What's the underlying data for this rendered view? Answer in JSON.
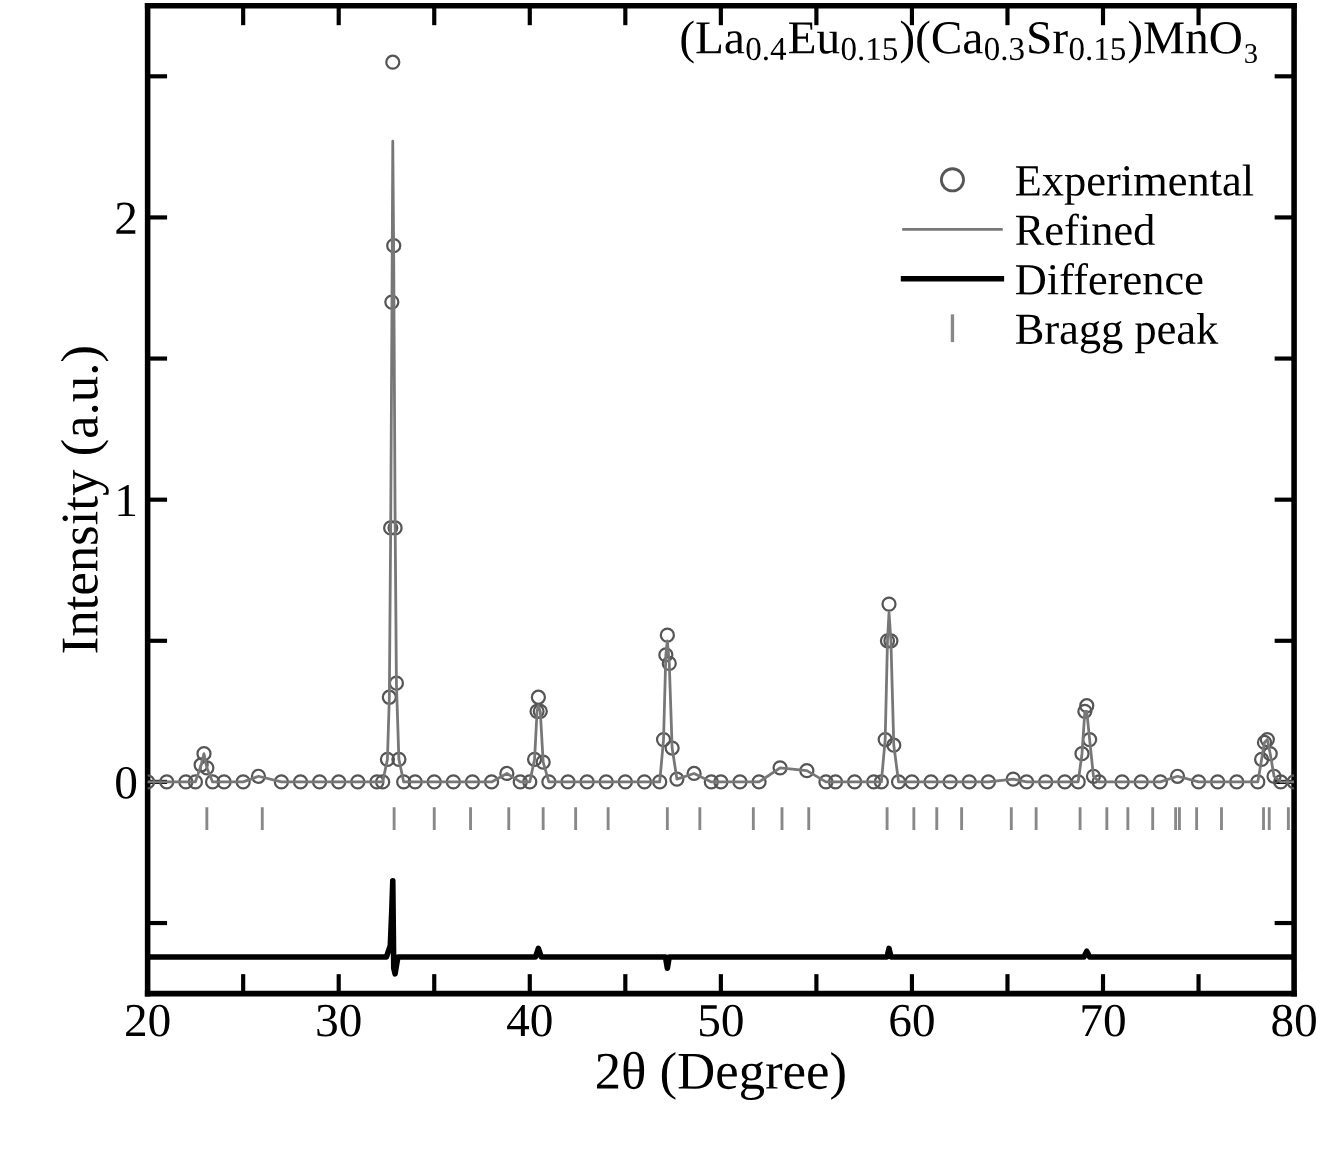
{
  "chart_data": {
    "type": "line",
    "title": "(La$_{0.4}$Eu$_{0.15}$)(Ca$_{0.3}$Sr$_{0.15}$)MnO₃",
    "xlabel": "2θ (Degree)",
    "ylabel": "Intensity (a.u.)",
    "xlim": [
      20,
      80
    ],
    "ylim": [
      -0.75,
      2.75
    ],
    "xticks": [
      20,
      {
        "value": 25,
        "label": null
      },
      30,
      {
        "value": 35,
        "label": null
      },
      40,
      {
        "value": 45,
        "label": null
      },
      50,
      {
        "value": 55,
        "label": null
      },
      60,
      {
        "value": 65,
        "label": null
      },
      70,
      {
        "value": 75,
        "label": null
      },
      80
    ],
    "yticks": [
      {
        "value": -0.5,
        "label": null
      },
      0,
      {
        "value": 0.5,
        "label": null
      },
      1,
      {
        "value": 1.5,
        "label": null
      },
      2,
      {
        "value": 2.5,
        "label": null
      }
    ],
    "grid": false,
    "legend": "top right",
    "series": [
      {
        "name": "Experimental",
        "type": "scatter",
        "marker": "circle",
        "color": "#555555",
        "x": [
          20,
          21,
          22,
          22.5,
          22.8,
          22.95,
          23.1,
          23.4,
          24,
          25,
          25.8,
          27,
          28,
          29,
          30,
          31,
          32,
          32.3,
          32.55,
          32.65,
          32.72,
          32.78,
          32.83,
          32.88,
          32.95,
          33.02,
          33.15,
          33.4,
          34,
          35,
          36,
          37,
          38,
          38.8,
          39.5,
          40,
          40.25,
          40.38,
          40.45,
          40.55,
          40.7,
          41,
          42,
          43,
          44,
          45,
          46,
          46.8,
          47,
          47.12,
          47.2,
          47.3,
          47.45,
          47.7,
          48.6,
          49.5,
          50,
          51,
          52,
          53.1,
          54.5,
          55.5,
          56,
          57,
          58,
          58.4,
          58.6,
          58.72,
          58.8,
          58.9,
          59.05,
          59.3,
          60,
          61,
          62,
          63,
          64,
          65.3,
          66,
          67,
          68,
          68.7,
          68.9,
          69.05,
          69.15,
          69.3,
          69.5,
          69.8,
          71,
          72,
          73,
          73.9,
          75,
          76,
          77,
          78.1,
          78.3,
          78.45,
          78.6,
          78.75,
          78.95,
          79.3,
          80
        ],
        "values": [
          0,
          0,
          0,
          0,
          0.06,
          0.1,
          0.05,
          0,
          0,
          0,
          0.02,
          0,
          0,
          0,
          0,
          0,
          0,
          0,
          0.08,
          0.3,
          0.9,
          1.7,
          2.55,
          1.9,
          0.9,
          0.35,
          0.08,
          0,
          0,
          0,
          0,
          0,
          0,
          0.03,
          0,
          0,
          0.08,
          0.25,
          0.3,
          0.25,
          0.07,
          0,
          0,
          0,
          0,
          0,
          0,
          0,
          0.15,
          0.45,
          0.52,
          0.42,
          0.12,
          0.01,
          0.03,
          0,
          0,
          0,
          0,
          0.05,
          0.04,
          0,
          0,
          0,
          0,
          0,
          0.15,
          0.5,
          0.63,
          0.5,
          0.13,
          0,
          0,
          0,
          0,
          0,
          0,
          0.01,
          0,
          0,
          0,
          0,
          0.1,
          0.25,
          0.27,
          0.15,
          0.02,
          0,
          0,
          0,
          0,
          0.02,
          0,
          0,
          0,
          0,
          0.08,
          0.14,
          0.15,
          0.1,
          0.02,
          0,
          0
        ]
      },
      {
        "name": "Refined",
        "line_style": "solid",
        "color": "#777777",
        "x": [
          20,
          21,
          22,
          22.5,
          22.8,
          22.95,
          23.1,
          23.4,
          24,
          25,
          25.8,
          27,
          28,
          29,
          30,
          31,
          32,
          32.3,
          32.55,
          32.65,
          32.72,
          32.78,
          32.83,
          32.88,
          32.95,
          33.02,
          33.15,
          33.4,
          34,
          35,
          36,
          37,
          38,
          38.8,
          39.5,
          40,
          40.25,
          40.38,
          40.45,
          40.55,
          40.7,
          41,
          42,
          43,
          44,
          45,
          46,
          46.8,
          47,
          47.12,
          47.2,
          47.3,
          47.45,
          47.7,
          48.6,
          49.5,
          50,
          51,
          52,
          53.1,
          54.5,
          55.5,
          56,
          57,
          58,
          58.4,
          58.6,
          58.72,
          58.8,
          58.9,
          59.05,
          59.3,
          60,
          61,
          62,
          63,
          64,
          65.3,
          66,
          67,
          68,
          68.7,
          68.9,
          69.05,
          69.15,
          69.3,
          69.5,
          69.8,
          71,
          72,
          73,
          73.9,
          75,
          76,
          77,
          78.1,
          78.3,
          78.45,
          78.6,
          78.75,
          78.95,
          79.3,
          80
        ],
        "values": [
          0,
          0,
          0,
          0,
          0.06,
          0.1,
          0.05,
          0,
          0,
          0,
          0.02,
          0,
          0,
          0,
          0,
          0,
          0,
          0,
          0.08,
          0.3,
          0.9,
          1.6,
          2.27,
          1.85,
          0.95,
          0.35,
          0.08,
          0,
          0,
          0,
          0,
          0,
          0,
          0.03,
          0,
          0,
          0.08,
          0.25,
          0.27,
          0.25,
          0.07,
          0,
          0,
          0,
          0,
          0,
          0,
          0,
          0.15,
          0.45,
          0.5,
          0.42,
          0.12,
          0.01,
          0.03,
          0,
          0,
          0,
          0,
          0.05,
          0.04,
          0,
          0,
          0,
          0,
          0,
          0.15,
          0.5,
          0.6,
          0.5,
          0.13,
          0,
          0,
          0,
          0,
          0,
          0,
          0.01,
          0,
          0,
          0,
          0,
          0.1,
          0.25,
          0.25,
          0.15,
          0.02,
          0,
          0,
          0,
          0,
          0.02,
          0,
          0,
          0,
          0,
          0.08,
          0.14,
          0.15,
          0.1,
          0.02,
          0,
          0
        ]
      },
      {
        "name": "Difference",
        "type": "line",
        "line_style": "solid",
        "color": "#000000",
        "x": [
          20,
          32.5,
          32.7,
          32.78,
          32.83,
          32.88,
          32.95,
          33.1,
          40.3,
          40.45,
          40.6,
          47.1,
          47.2,
          47.3,
          58.7,
          58.8,
          58.9,
          69.0,
          69.15,
          69.3,
          80
        ],
        "values": [
          -0.62,
          -0.62,
          -0.58,
          -0.45,
          -0.35,
          -0.66,
          -0.68,
          -0.62,
          -0.62,
          -0.59,
          -0.62,
          -0.62,
          -0.66,
          -0.62,
          -0.62,
          -0.59,
          -0.62,
          -0.62,
          -0.6,
          -0.62,
          -0.62
        ]
      },
      {
        "name": "Bragg peak",
        "type": "bar",
        "color": "#888888",
        "base": [
          -0.17,
          -0.17,
          -0.17,
          -0.17,
          -0.17,
          -0.17,
          -0.17,
          -0.17,
          -0.17,
          -0.17,
          -0.17,
          -0.17,
          -0.17,
          -0.17,
          -0.17,
          -0.17,
          -0.17,
          -0.17,
          -0.17,
          -0.17,
          -0.17,
          -0.17,
          -0.17,
          -0.17,
          -0.17,
          -0.17,
          -0.17,
          -0.17,
          -0.17,
          -0.17,
          -0.17
        ],
        "x": [
          23.1,
          26.0,
          32.9,
          35.0,
          36.9,
          38.9,
          40.7,
          42.4,
          44.1,
          47.2,
          48.9,
          51.7,
          53.2,
          54.6,
          58.7,
          60.1,
          61.3,
          62.6,
          65.2,
          66.5,
          68.8,
          70.2,
          71.3,
          72.6,
          73.8,
          74.0,
          74.9,
          76.2,
          78.4,
          78.7,
          79.7
        ],
        "values": [
          0.08,
          0.08,
          0.08,
          0.08,
          0.08,
          0.08,
          0.08,
          0.08,
          0.08,
          0.08,
          0.08,
          0.08,
          0.08,
          0.08,
          0.08,
          0.08,
          0.08,
          0.08,
          0.08,
          0.08,
          0.08,
          0.08,
          0.08,
          0.08,
          0.08,
          0.08,
          0.08,
          0.08,
          0.08,
          0.08,
          0.08
        ]
      }
    ]
  }
}
